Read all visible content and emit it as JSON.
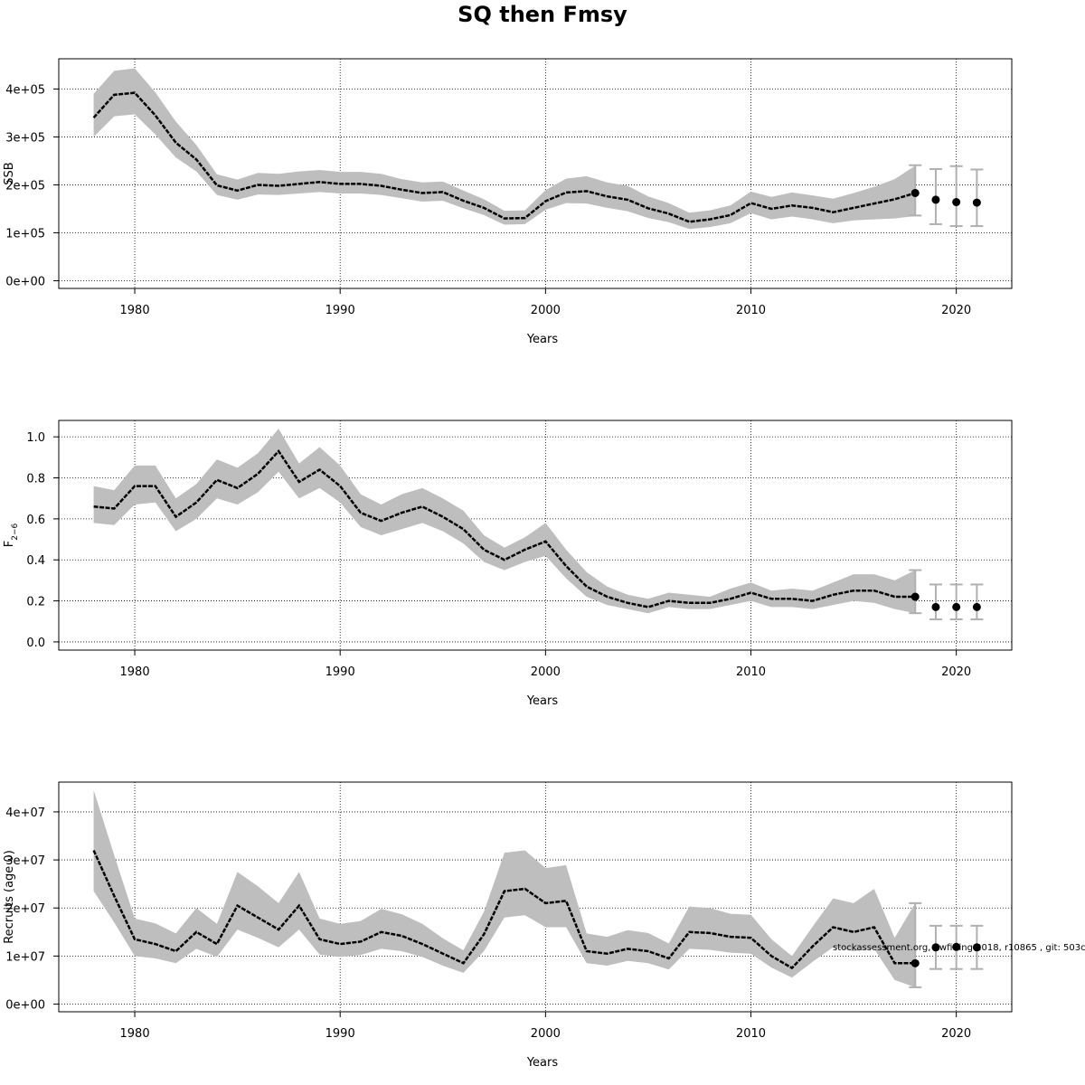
{
  "title": "SQ then Fmsy",
  "footnote": "stockassessment.org, Swfi ting 2018, r10865 , git: 503c",
  "colors": {
    "band": "#bebebe",
    "line": "#000000",
    "grid": "#000000",
    "errorbar": "#b0b0b0",
    "point": "#000000"
  },
  "chart_data": [
    {
      "type": "line",
      "title": "",
      "xlabel": "Years",
      "ylabel": "SSB",
      "xlim": [
        1976.3,
        2022.7
      ],
      "ylim": [
        -16000,
        463000
      ],
      "xticks": [
        1980,
        1990,
        2000,
        2010,
        2020
      ],
      "yticks": [
        0,
        100000,
        200000,
        300000,
        400000
      ],
      "ytick_labels": [
        "0e+00",
        "1e+05",
        "2e+05",
        "3e+05",
        "4e+05"
      ],
      "grid": true,
      "series": [
        {
          "style": "estimate-with-band",
          "x": [
            1978,
            1979,
            1980,
            1981,
            1982,
            1983,
            1984,
            1985,
            1986,
            1987,
            1988,
            1989,
            1990,
            1991,
            1992,
            1993,
            1994,
            1995,
            1996,
            1997,
            1998,
            1999,
            2000,
            2001,
            2002,
            2003,
            2004,
            2005,
            2006,
            2007,
            2008,
            2009,
            2010,
            2011,
            2012,
            2013,
            2014,
            2015,
            2016,
            2017,
            2018
          ],
          "y": [
            340000,
            388000,
            392000,
            345000,
            288000,
            253000,
            199000,
            188000,
            200000,
            198000,
            202000,
            206000,
            202000,
            202000,
            198000,
            190000,
            183000,
            185000,
            167000,
            152000,
            130000,
            131000,
            166000,
            184000,
            187000,
            176000,
            169000,
            151000,
            140000,
            123000,
            128000,
            137000,
            162000,
            150000,
            157000,
            152000,
            143000,
            152000,
            161000,
            170000,
            183000
          ],
          "lower": [
            300000,
            343000,
            347000,
            305000,
            257000,
            228000,
            179000,
            169000,
            180000,
            179000,
            182000,
            185000,
            182000,
            182000,
            179000,
            172000,
            165000,
            167000,
            151000,
            137000,
            117000,
            118000,
            148000,
            162000,
            161000,
            152000,
            145000,
            131000,
            122000,
            108000,
            112000,
            120000,
            141000,
            128000,
            134000,
            128000,
            120000,
            126000,
            128000,
            130000,
            135000
          ],
          "upper": [
            390000,
            438000,
            443000,
            393000,
            332000,
            283000,
            222000,
            211000,
            225000,
            223000,
            228000,
            231000,
            227000,
            227000,
            223000,
            212000,
            205000,
            207000,
            188000,
            170000,
            146000,
            147000,
            189000,
            213000,
            218000,
            205000,
            198000,
            176000,
            162000,
            142000,
            147000,
            157000,
            186000,
            175000,
            184000,
            178000,
            171000,
            183000,
            196000,
            212000,
            240000
          ]
        },
        {
          "style": "projection-points",
          "x": [
            2018,
            2019,
            2020,
            2021
          ],
          "y": [
            183000,
            169000,
            164000,
            163000
          ],
          "lower": [
            136000,
            118000,
            114000,
            114000
          ],
          "upper": [
            241000,
            233000,
            239000,
            232000
          ]
        }
      ]
    },
    {
      "type": "line",
      "title": "",
      "xlabel": "Years",
      "ylabel": "F",
      "ylabel_subscript": "2−6",
      "xlim": [
        1976.3,
        2022.7
      ],
      "ylim": [
        -0.04,
        1.08
      ],
      "xticks": [
        1980,
        1990,
        2000,
        2010,
        2020
      ],
      "yticks": [
        0,
        0.2,
        0.4,
        0.6,
        0.8,
        1.0
      ],
      "ytick_labels": [
        "0.0",
        "0.2",
        "0.4",
        "0.6",
        "0.8",
        "1.0"
      ],
      "grid": true,
      "series": [
        {
          "style": "estimate-with-band",
          "x": [
            1978,
            1979,
            1980,
            1981,
            1982,
            1983,
            1984,
            1985,
            1986,
            1987,
            1988,
            1989,
            1990,
            1991,
            1992,
            1993,
            1994,
            1995,
            1996,
            1997,
            1998,
            1999,
            2000,
            2001,
            2002,
            2003,
            2004,
            2005,
            2006,
            2007,
            2008,
            2009,
            2010,
            2011,
            2012,
            2013,
            2014,
            2015,
            2016,
            2017,
            2018
          ],
          "y": [
            0.66,
            0.65,
            0.76,
            0.76,
            0.61,
            0.68,
            0.79,
            0.75,
            0.82,
            0.93,
            0.78,
            0.84,
            0.76,
            0.63,
            0.59,
            0.63,
            0.66,
            0.61,
            0.55,
            0.45,
            0.4,
            0.45,
            0.49,
            0.37,
            0.27,
            0.22,
            0.19,
            0.17,
            0.2,
            0.19,
            0.19,
            0.21,
            0.24,
            0.21,
            0.21,
            0.2,
            0.23,
            0.25,
            0.25,
            0.22,
            0.22
          ],
          "lower": [
            0.58,
            0.57,
            0.67,
            0.68,
            0.54,
            0.6,
            0.7,
            0.67,
            0.73,
            0.83,
            0.7,
            0.75,
            0.68,
            0.56,
            0.52,
            0.55,
            0.58,
            0.54,
            0.48,
            0.39,
            0.35,
            0.39,
            0.42,
            0.31,
            0.22,
            0.18,
            0.16,
            0.14,
            0.17,
            0.16,
            0.16,
            0.18,
            0.2,
            0.17,
            0.17,
            0.16,
            0.18,
            0.2,
            0.19,
            0.16,
            0.14
          ],
          "upper": [
            0.76,
            0.74,
            0.86,
            0.86,
            0.7,
            0.77,
            0.89,
            0.85,
            0.92,
            1.04,
            0.87,
            0.95,
            0.86,
            0.72,
            0.67,
            0.72,
            0.75,
            0.7,
            0.64,
            0.52,
            0.46,
            0.51,
            0.58,
            0.45,
            0.34,
            0.27,
            0.23,
            0.21,
            0.24,
            0.23,
            0.22,
            0.26,
            0.29,
            0.25,
            0.26,
            0.25,
            0.29,
            0.33,
            0.33,
            0.3,
            0.35
          ]
        },
        {
          "style": "projection-points",
          "x": [
            2018,
            2019,
            2020,
            2021
          ],
          "y": [
            0.22,
            0.17,
            0.17,
            0.17
          ],
          "lower": [
            0.14,
            0.11,
            0.11,
            0.11
          ],
          "upper": [
            0.35,
            0.28,
            0.28,
            0.28
          ]
        }
      ]
    },
    {
      "type": "line",
      "title": "",
      "xlabel": "Years",
      "ylabel": "Recruits (age 0)",
      "xlim": [
        1976.3,
        2022.7
      ],
      "ylim": [
        -1600000,
        46200000
      ],
      "xticks": [
        1980,
        1990,
        2000,
        2010,
        2020
      ],
      "yticks": [
        0,
        10000000,
        20000000,
        30000000,
        40000000
      ],
      "ytick_labels": [
        "0e+00",
        "1e+07",
        "2e+07",
        "3e+07",
        "4e+07"
      ],
      "grid": true,
      "series": [
        {
          "style": "estimate-with-band",
          "x": [
            1978,
            1979,
            1980,
            1981,
            1982,
            1983,
            1984,
            1985,
            1986,
            1987,
            1988,
            1989,
            1990,
            1991,
            1992,
            1993,
            1994,
            1995,
            1996,
            1997,
            1998,
            1999,
            2000,
            2001,
            2002,
            2003,
            2004,
            2005,
            2006,
            2007,
            2008,
            2009,
            2010,
            2011,
            2012,
            2013,
            2014,
            2015,
            2016,
            2017,
            2018
          ],
          "y": [
            32000000,
            22500000,
            13500000,
            12500000,
            11000000,
            15000000,
            12500000,
            20500000,
            18000000,
            15500000,
            20500000,
            13500000,
            12500000,
            13000000,
            15000000,
            14200000,
            12500000,
            10500000,
            8500000,
            14500000,
            23500000,
            24000000,
            21000000,
            21500000,
            11000000,
            10500000,
            11500000,
            11000000,
            9500000,
            15000000,
            14800000,
            14000000,
            13800000,
            10000000,
            7500000,
            12000000,
            16000000,
            15000000,
            16000000,
            8500000,
            8500000
          ],
          "lower": [
            23500000,
            17000000,
            10000000,
            9500000,
            8500000,
            11500000,
            9800000,
            15500000,
            13800000,
            11800000,
            15500000,
            10300000,
            9800000,
            10200000,
            11500000,
            11000000,
            9800000,
            8000000,
            6500000,
            11000000,
            18000000,
            18500000,
            16000000,
            16000000,
            8500000,
            8000000,
            9000000,
            8500000,
            7200000,
            11500000,
            11300000,
            10700000,
            10500000,
            7600000,
            5500000,
            8800000,
            11800000,
            11000000,
            11500000,
            5000000,
            3500000
          ],
          "upper": [
            44500000,
            31000000,
            17800000,
            16800000,
            14700000,
            20000000,
            16700000,
            27500000,
            24500000,
            21000000,
            27500000,
            17800000,
            16700000,
            17300000,
            19800000,
            18700000,
            16700000,
            13700000,
            11200000,
            19200000,
            31500000,
            32000000,
            28300000,
            28900000,
            14700000,
            14000000,
            15400000,
            14800000,
            12600000,
            20300000,
            20000000,
            18800000,
            18600000,
            13500000,
            10000000,
            16100000,
            22000000,
            21000000,
            24000000,
            13800000,
            21000000
          ]
        },
        {
          "style": "projection-points",
          "x": [
            2018,
            2019,
            2020,
            2021
          ],
          "y": [
            8500000,
            11800000,
            11900000,
            11800000
          ],
          "lower": [
            3500000,
            7300000,
            7300000,
            7300000
          ],
          "upper": [
            21000000,
            16300000,
            16300000,
            16300000
          ]
        }
      ]
    }
  ]
}
